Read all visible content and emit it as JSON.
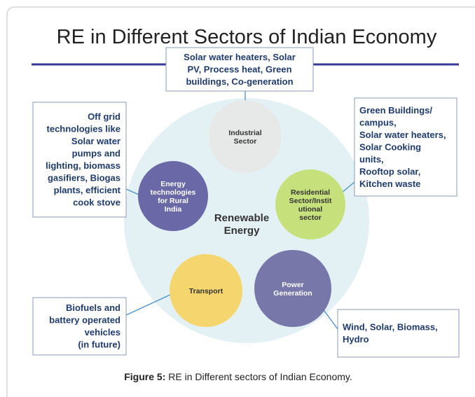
{
  "title": "RE in Different Sectors of Indian Economy",
  "center_label": [
    "Renewable",
    "Energy"
  ],
  "nodes": [
    {
      "label": [
        "Industrial",
        "Sector"
      ]
    },
    {
      "label": [
        "Residential",
        "Sector/Instit",
        "utional",
        "sector"
      ]
    },
    {
      "label": [
        "Energy",
        "technologies",
        "for Rural",
        "India"
      ]
    },
    {
      "label": [
        "Transport"
      ]
    },
    {
      "label": [
        "Power",
        "Generation"
      ]
    }
  ],
  "boxes": [
    {
      "lines": [
        "Solar water heaters, Solar",
        "PV, Process heat, Green",
        "buildings, Co-generation"
      ]
    },
    {
      "lines": [
        "Green Buildings/",
        "campus,",
        "Solar water heaters,",
        "Solar Cooking",
        "units,",
        "Rooftop solar,",
        "Kitchen waste"
      ]
    },
    {
      "lines": [
        "Off grid",
        "technologies like",
        "Solar water",
        "pumps and",
        "lighting, biomass",
        "gasifiers, Biogas",
        "plants, efficient",
        "cook stove"
      ]
    },
    {
      "lines": [
        "Biofuels and",
        "battery operated",
        "vehicles",
        "(in future)"
      ]
    },
    {
      "lines": [
        "Wind, Solar, Biomass,",
        "Hydro"
      ]
    }
  ],
  "caption": {
    "label": "Figure 5:",
    "text": "RE in Different sectors of Indian Economy."
  }
}
